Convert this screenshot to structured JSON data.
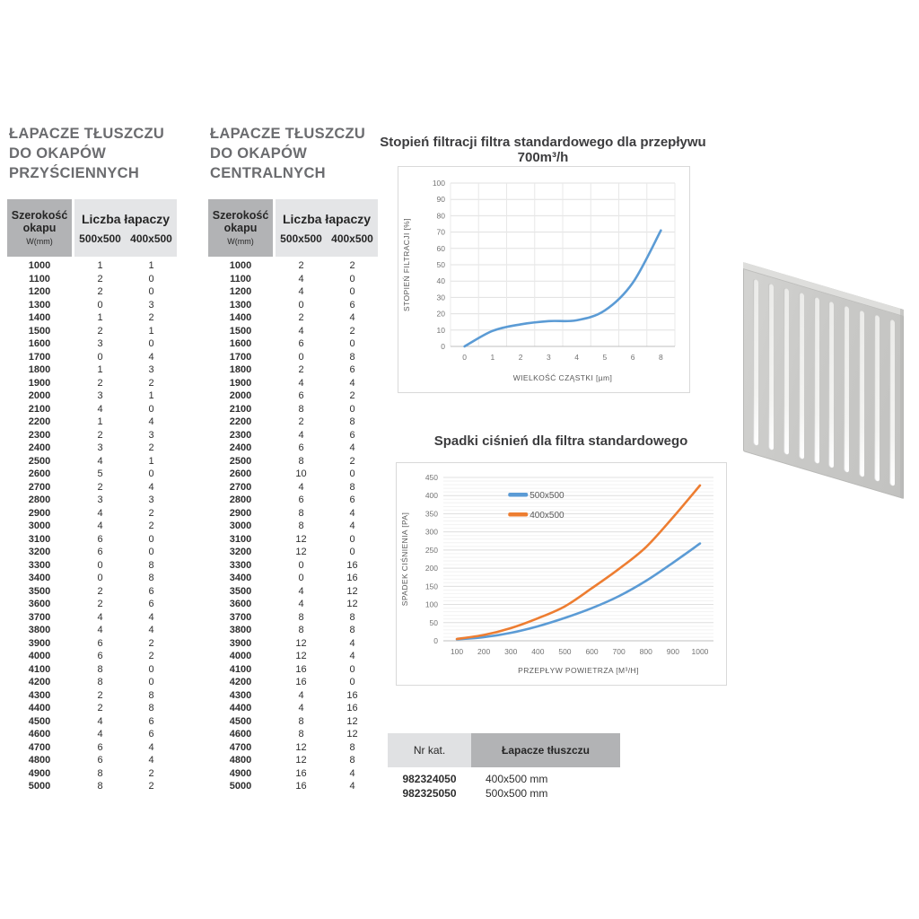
{
  "sections": {
    "wall_table": {
      "title_lines": [
        "ŁAPACZE TŁUSZCZU",
        "DO OKAPÓW",
        "PRZYŚCIENNYCH"
      ],
      "header": {
        "col1": "Szerokość okapu",
        "col1_unit": "W(mm)",
        "group": "Liczba łapaczy",
        "sub1": "500x500",
        "sub2": "400x500"
      },
      "rows": [
        [
          1000,
          1,
          1
        ],
        [
          1100,
          2,
          0
        ],
        [
          1200,
          2,
          0
        ],
        [
          1300,
          0,
          3
        ],
        [
          1400,
          1,
          2
        ],
        [
          1500,
          2,
          1
        ],
        [
          1600,
          3,
          0
        ],
        [
          1700,
          0,
          4
        ],
        [
          1800,
          1,
          3
        ],
        [
          1900,
          2,
          2
        ],
        [
          2000,
          3,
          1
        ],
        [
          2100,
          4,
          0
        ],
        [
          2200,
          1,
          4
        ],
        [
          2300,
          2,
          3
        ],
        [
          2400,
          3,
          2
        ],
        [
          2500,
          4,
          1
        ],
        [
          2600,
          5,
          0
        ],
        [
          2700,
          2,
          4
        ],
        [
          2800,
          3,
          3
        ],
        [
          2900,
          4,
          2
        ],
        [
          3000,
          4,
          2
        ],
        [
          3100,
          6,
          0
        ],
        [
          3200,
          6,
          0
        ],
        [
          3300,
          0,
          8
        ],
        [
          3400,
          0,
          8
        ],
        [
          3500,
          2,
          6
        ],
        [
          3600,
          2,
          6
        ],
        [
          3700,
          4,
          4
        ],
        [
          3800,
          4,
          4
        ],
        [
          3900,
          6,
          2
        ],
        [
          4000,
          6,
          2
        ],
        [
          4100,
          8,
          0
        ],
        [
          4200,
          8,
          0
        ],
        [
          4300,
          2,
          8
        ],
        [
          4400,
          2,
          8
        ],
        [
          4500,
          4,
          6
        ],
        [
          4600,
          4,
          6
        ],
        [
          4700,
          6,
          4
        ],
        [
          4800,
          6,
          4
        ],
        [
          4900,
          8,
          2
        ],
        [
          5000,
          8,
          2
        ]
      ]
    },
    "central_table": {
      "title_lines": [
        "ŁAPACZE TŁUSZCZU",
        "DO OKAPÓW",
        "CENTRALNYCH"
      ],
      "header": {
        "col1": "Szerokość okapu",
        "col1_unit": "W(mm)",
        "group": "Liczba łapaczy",
        "sub1": "500x500",
        "sub2": "400x500"
      },
      "rows": [
        [
          1000,
          2,
          2
        ],
        [
          1100,
          4,
          0
        ],
        [
          1200,
          4,
          0
        ],
        [
          1300,
          0,
          6
        ],
        [
          1400,
          2,
          4
        ],
        [
          1500,
          4,
          2
        ],
        [
          1600,
          6,
          0
        ],
        [
          1700,
          0,
          8
        ],
        [
          1800,
          2,
          6
        ],
        [
          1900,
          4,
          4
        ],
        [
          2000,
          6,
          2
        ],
        [
          2100,
          8,
          0
        ],
        [
          2200,
          2,
          8
        ],
        [
          2300,
          4,
          6
        ],
        [
          2400,
          6,
          4
        ],
        [
          2500,
          8,
          2
        ],
        [
          2600,
          10,
          0
        ],
        [
          2700,
          4,
          8
        ],
        [
          2800,
          6,
          6
        ],
        [
          2900,
          8,
          4
        ],
        [
          3000,
          8,
          4
        ],
        [
          3100,
          12,
          0
        ],
        [
          3200,
          12,
          0
        ],
        [
          3300,
          0,
          16
        ],
        [
          3400,
          0,
          16
        ],
        [
          3500,
          4,
          12
        ],
        [
          3600,
          4,
          12
        ],
        [
          3700,
          8,
          8
        ],
        [
          3800,
          8,
          8
        ],
        [
          3900,
          12,
          4
        ],
        [
          4000,
          12,
          4
        ],
        [
          4100,
          16,
          0
        ],
        [
          4200,
          16,
          0
        ],
        [
          4300,
          4,
          16
        ],
        [
          4400,
          4,
          16
        ],
        [
          4500,
          8,
          12
        ],
        [
          4600,
          8,
          12
        ],
        [
          4700,
          12,
          8
        ],
        [
          4800,
          12,
          8
        ],
        [
          4900,
          16,
          4
        ],
        [
          5000,
          16,
          4
        ]
      ]
    },
    "catalog": {
      "col1_header": "Nr kat.",
      "col2_header": "Łapacze tłuszczu",
      "rows": [
        [
          "982324050",
          "400x500 mm"
        ],
        [
          "982325050",
          "500x500 mm"
        ]
      ]
    }
  },
  "chart_data": [
    {
      "type": "line",
      "title": "Stopień filtracji filtra standardowego dla przepływu 700m³/h",
      "xlabel": "WIELKOŚĆ CZĄSTKI [µm]",
      "ylabel": "STOPIEŃ FILTRACJI [%]",
      "categories": [
        "0",
        "1",
        "2",
        "3",
        "4",
        "5",
        "6",
        "8"
      ],
      "ylim": [
        0,
        100
      ],
      "y_major": 10,
      "grid": "both",
      "legend": false,
      "series": [
        {
          "name": "stopień filtracji",
          "color": "#5b9bd5",
          "values": [
            0,
            9.5,
            13.5,
            15.5,
            16,
            22,
            39,
            71
          ]
        }
      ]
    },
    {
      "type": "line",
      "title": "Spadki ciśnień dla filtra standardowego",
      "xlabel": "PRZEPŁYW POWIETRZA [M³/H]",
      "ylabel": "SPADEK CIŚNIENIA [PA]",
      "categories": [
        "100",
        "200",
        "300",
        "400",
        "500",
        "600",
        "700",
        "800",
        "900",
        "1000"
      ],
      "ylim": [
        0,
        450
      ],
      "y_major": 50,
      "y_minor": 10,
      "grid": "h",
      "legend": true,
      "series": [
        {
          "name": "500x500",
          "color": "#5b9bd5",
          "values": [
            4,
            10,
            22,
            40,
            63,
            90,
            123,
            165,
            215,
            268
          ]
        },
        {
          "name": "400x500",
          "color": "#ed7d31",
          "values": [
            5,
            16,
            35,
            62,
            95,
            145,
            198,
            258,
            340,
            428
          ]
        }
      ]
    }
  ],
  "colors": {
    "series_blue": "#5b9bd5",
    "series_orange": "#ed7d31",
    "header_dark": "#b2b3b5",
    "header_light": "#e4e5e7",
    "title_gray": "#6b6c6f"
  }
}
